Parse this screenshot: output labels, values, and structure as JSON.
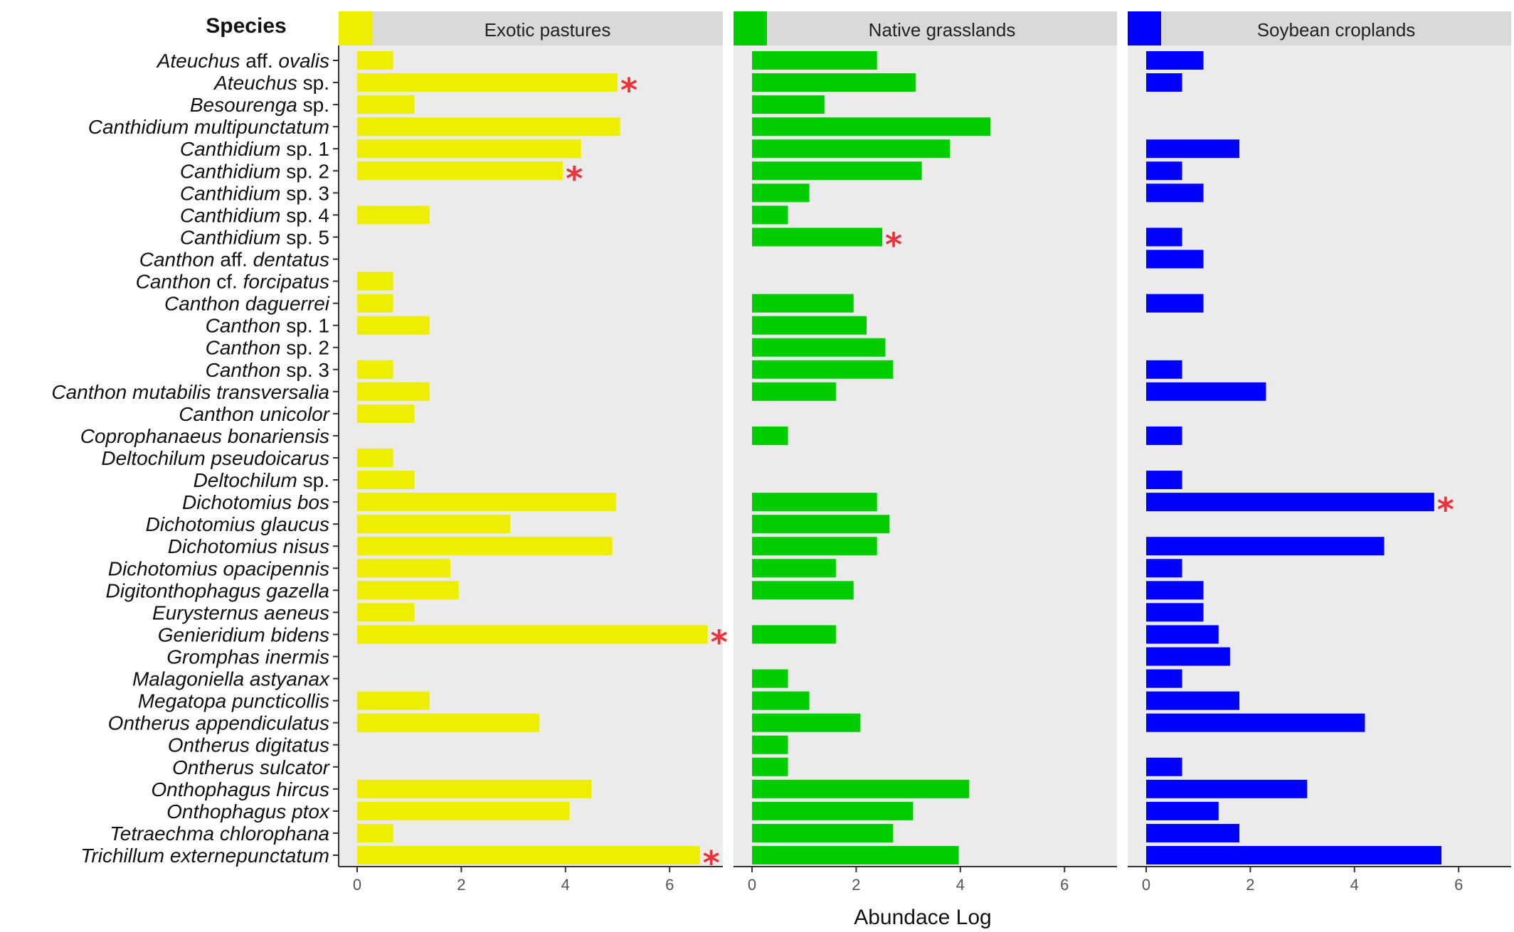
{
  "chart_data": {
    "type": "bar",
    "orientation": "horizontal",
    "species_header": "Species",
    "xlabel": "Abundace Log",
    "xlim": [
      0,
      7
    ],
    "xticks": [
      0,
      2,
      4,
      6
    ],
    "categories": [
      {
        "italic": "Ateuchus",
        "rest": " aff. ",
        "italic2": "ovalis"
      },
      {
        "italic": "Ateuchus",
        "rest": " sp.",
        "italic2": ""
      },
      {
        "italic": "Besourenga",
        "rest": " sp.",
        "italic2": ""
      },
      {
        "italic": "Canthidium multipunctatum",
        "rest": "",
        "italic2": ""
      },
      {
        "italic": "Canthidium",
        "rest": " sp. 1",
        "italic2": ""
      },
      {
        "italic": "Canthidium",
        "rest": " sp. 2",
        "italic2": ""
      },
      {
        "italic": "Canthidium",
        "rest": " sp. 3",
        "italic2": ""
      },
      {
        "italic": "Canthidium",
        "rest": " sp. 4",
        "italic2": ""
      },
      {
        "italic": "Canthidium",
        "rest": " sp. 5",
        "italic2": ""
      },
      {
        "italic": "Canthon",
        "rest": " aff. ",
        "italic2": "dentatus"
      },
      {
        "italic": "Canthon",
        "rest": " cf. ",
        "italic2": "forcipatus"
      },
      {
        "italic": "Canthon daguerrei",
        "rest": "",
        "italic2": ""
      },
      {
        "italic": "Canthon",
        "rest": " sp. 1",
        "italic2": ""
      },
      {
        "italic": "Canthon",
        "rest": " sp. 2",
        "italic2": ""
      },
      {
        "italic": "Canthon",
        "rest": " sp. 3",
        "italic2": ""
      },
      {
        "italic": "Canthon mutabilis transversalia",
        "rest": "",
        "italic2": ""
      },
      {
        "italic": "Canthon unicolor",
        "rest": "",
        "italic2": ""
      },
      {
        "italic": "Coprophanaeus bonariensis",
        "rest": "",
        "italic2": ""
      },
      {
        "italic": "Deltochilum pseudoicarus",
        "rest": "",
        "italic2": ""
      },
      {
        "italic": "Deltochilum",
        "rest": " sp.",
        "italic2": ""
      },
      {
        "italic": "Dichotomius bos",
        "rest": "",
        "italic2": ""
      },
      {
        "italic": "Dichotomius glaucus",
        "rest": "",
        "italic2": ""
      },
      {
        "italic": "Dichotomius nisus",
        "rest": "",
        "italic2": ""
      },
      {
        "italic": "Dichotomius opacipennis",
        "rest": "",
        "italic2": ""
      },
      {
        "italic": "Digitonthophagus gazella",
        "rest": "",
        "italic2": ""
      },
      {
        "italic": "Eurysternus aeneus",
        "rest": "",
        "italic2": ""
      },
      {
        "italic": "Genieridium bidens",
        "rest": "",
        "italic2": ""
      },
      {
        "italic": "Gromphas inermis",
        "rest": "",
        "italic2": ""
      },
      {
        "italic": "Malagoniella astyanax",
        "rest": "",
        "italic2": ""
      },
      {
        "italic": "Megatopa puncticollis",
        "rest": "",
        "italic2": ""
      },
      {
        "italic": "Ontherus appendiculatus",
        "rest": "",
        "italic2": ""
      },
      {
        "italic": "Ontherus digitatus",
        "rest": "",
        "italic2": ""
      },
      {
        "italic": "Ontherus sulcator",
        "rest": "",
        "italic2": ""
      },
      {
        "italic": "Onthophagus hircus",
        "rest": "",
        "italic2": ""
      },
      {
        "italic": "Onthophagus ptox",
        "rest": "",
        "italic2": ""
      },
      {
        "italic": "Tetraechma chlorophana",
        "rest": "",
        "italic2": ""
      },
      {
        "italic": "Trichillum externepunctatum",
        "rest": "",
        "italic2": ""
      }
    ],
    "series": [
      {
        "name": "Exotic pastures",
        "color": "#eeee00",
        "values": [
          0.69,
          5.0,
          1.1,
          5.05,
          4.3,
          3.95,
          0,
          1.39,
          0,
          0,
          0.69,
          0.69,
          1.39,
          0,
          0.69,
          1.39,
          1.1,
          0,
          0.69,
          1.1,
          4.97,
          2.94,
          4.9,
          1.79,
          1.95,
          1.1,
          6.73,
          0,
          0,
          1.39,
          3.5,
          0,
          0,
          4.5,
          4.08,
          0.69,
          6.58
        ],
        "significant": [
          1,
          5,
          26,
          36
        ]
      },
      {
        "name": "Native grasslands",
        "color": "#00cc00",
        "values": [
          2.4,
          3.14,
          1.39,
          4.58,
          3.8,
          3.26,
          1.1,
          0.69,
          2.5,
          0,
          0,
          1.95,
          2.2,
          2.56,
          2.71,
          1.61,
          0,
          0.69,
          0,
          0,
          2.4,
          2.64,
          2.4,
          1.61,
          1.95,
          0,
          1.61,
          0,
          0.69,
          1.1,
          2.08,
          0.69,
          0.69,
          4.17,
          3.09,
          2.71,
          3.97
        ],
        "significant": [
          8
        ]
      },
      {
        "name": "Soybean croplands",
        "color": "#0000ff",
        "values": [
          1.1,
          0.69,
          0,
          0,
          1.79,
          0.69,
          1.1,
          0,
          0.69,
          1.1,
          0,
          1.1,
          0,
          0,
          0.69,
          2.3,
          0,
          0.69,
          0,
          0.69,
          5.53,
          0,
          4.57,
          0.69,
          1.1,
          1.1,
          1.39,
          1.61,
          0.69,
          1.79,
          4.2,
          0,
          0.69,
          3.09,
          1.39,
          1.79,
          5.67
        ],
        "significant": [
          20
        ]
      }
    ],
    "significance_marker": "*",
    "grid": false,
    "legend": "strip-top"
  }
}
